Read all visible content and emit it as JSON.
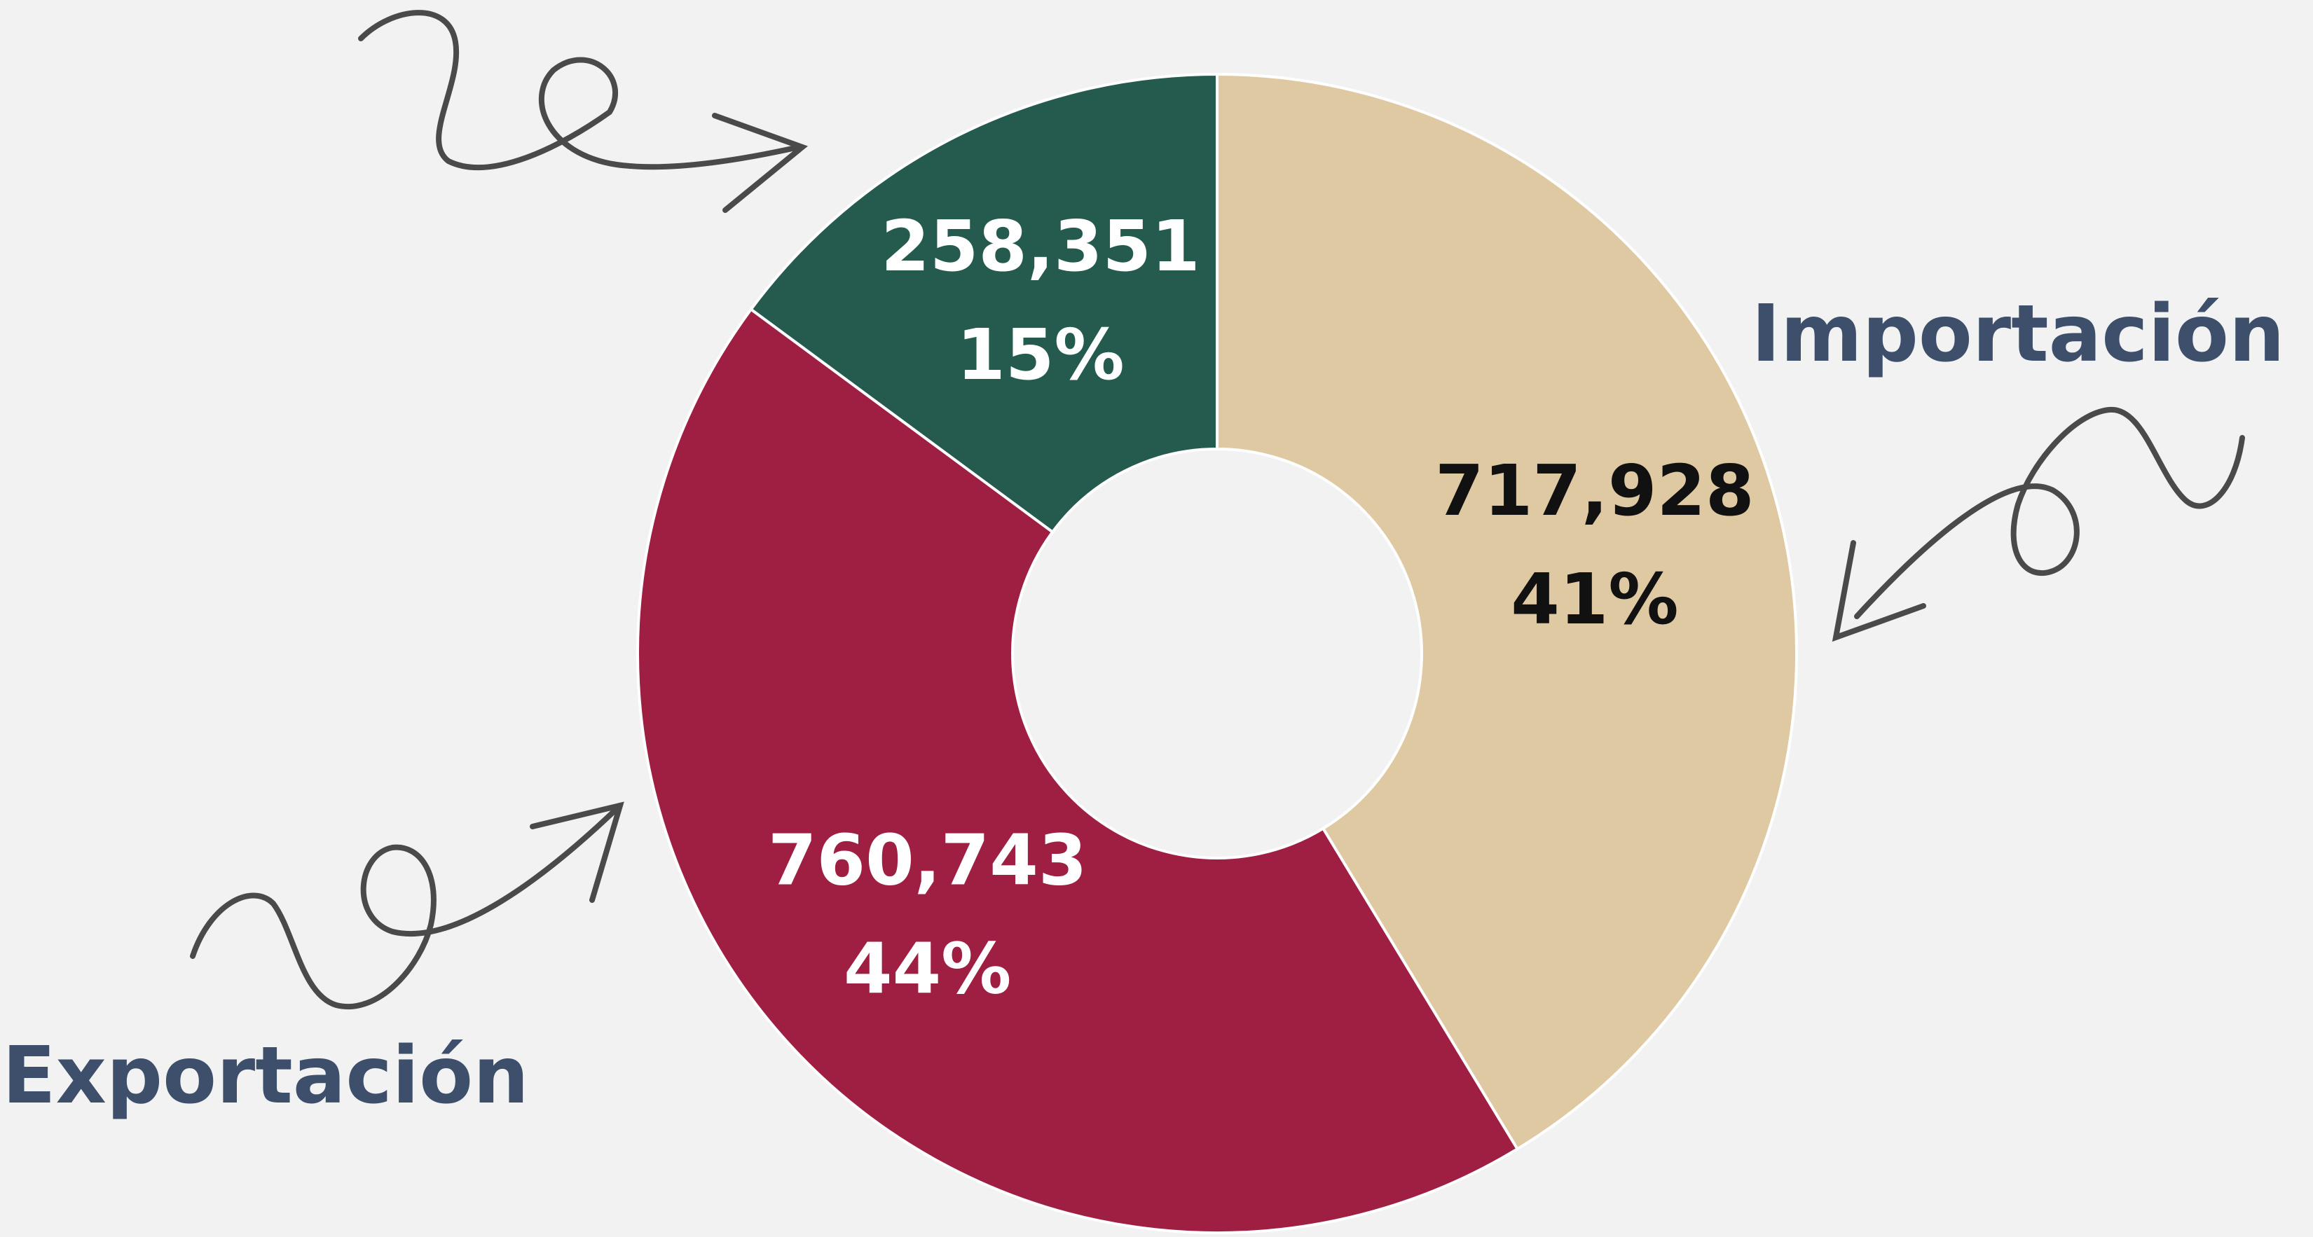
{
  "chart_data": {
    "type": "donut",
    "categories": [
      "Importación",
      "Exportación",
      null
    ],
    "values": [
      717928,
      760743,
      258351
    ],
    "value_labels": [
      "717,928",
      "760,743",
      "258,351"
    ],
    "percents": [
      41,
      44,
      15
    ],
    "percent_labels": [
      "41%",
      "44%",
      "15%"
    ],
    "colors": [
      "#dfc9a3",
      "#9f1f43",
      "#245b4e"
    ],
    "label_colors": [
      "#111111",
      "#ffffff",
      "#ffffff"
    ]
  }
}
